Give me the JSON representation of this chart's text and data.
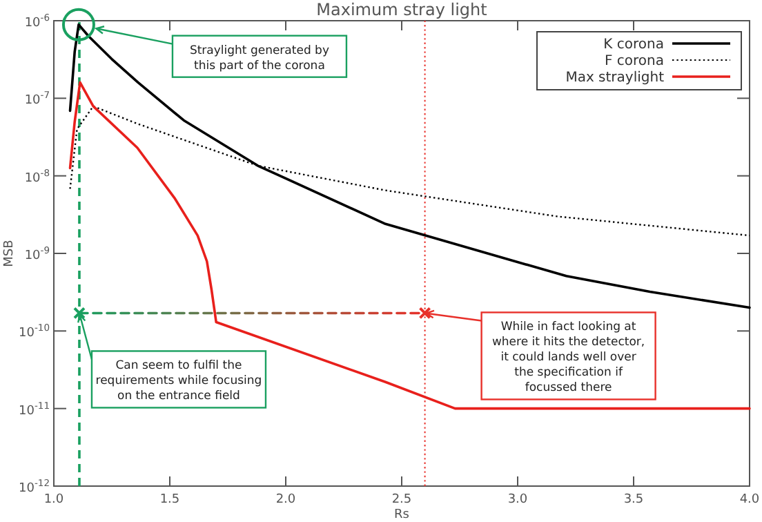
{
  "chart_data": {
    "type": "line",
    "title": "Maximum stray light",
    "xlabel": "Rs",
    "ylabel": "MSB",
    "log": "y",
    "grid": false,
    "legend": "top right",
    "marker": "none",
    "xlim": [
      1.0,
      4.0
    ],
    "xticks": [
      {
        "value": 1,
        "label": "1.0"
      },
      {
        "value": 1.5,
        "label": "1.5"
      },
      {
        "value": 2,
        "label": "2.0"
      },
      {
        "value": 2.5,
        "label": "2.5"
      },
      {
        "value": 3,
        "label": "3.0"
      },
      {
        "value": 3.5,
        "label": "3.5"
      },
      {
        "value": 4,
        "label": "4.0"
      }
    ],
    "ylim": [
      1e-12,
      1e-06
    ],
    "yticks": [
      {
        "value": 1e-12,
        "label": "10$^{-12}$"
      },
      {
        "value": 1e-11,
        "label": "10$^{-11}$"
      },
      {
        "value": 1e-10,
        "label": "10$^{-10}$"
      },
      {
        "value": 1e-09,
        "label": "10$^{-9}$"
      },
      {
        "value": 1e-08,
        "label": "10$^{-8}$"
      },
      {
        "value": 1e-07,
        "label": "10$^{-7}$"
      },
      {
        "value": 1e-06,
        "label": "10$^{-6}$"
      }
    ],
    "series": [
      {
        "name": "K corona",
        "color": "#000000",
        "line_style": "solid",
        "x": [
          1.07,
          1.09,
          1.107,
          1.15,
          1.25,
          1.363,
          1.56,
          1.88,
          2.43,
          3.21,
          3.57,
          4.0
        ],
        "values": [
          6.9e-08,
          4e-07,
          8.9e-07,
          6.3e-07,
          3.2e-07,
          1.6e-07,
          5.2e-08,
          1.35e-08,
          2.4e-09,
          5.1e-10,
          3.2e-10,
          2e-10
        ]
      },
      {
        "name": "F corona",
        "color": "#000000",
        "line_style": "dotted",
        "x": [
          1.07,
          1.1,
          1.17,
          1.36,
          1.88,
          2.43,
          3.17,
          4.0
        ],
        "values": [
          6.8e-09,
          4e-08,
          7.9e-08,
          4.7e-08,
          1.35e-08,
          6.5e-09,
          3e-09,
          1.7e-09
        ]
      },
      {
        "name": "Max straylight",
        "color": "#e8201c",
        "line_style": "solid",
        "x": [
          1.07,
          1.09,
          1.113,
          1.17,
          1.36,
          1.52,
          1.62,
          1.66,
          1.68,
          1.7,
          2.43,
          2.73,
          4.0
        ],
        "values": [
          1.26e-08,
          5e-08,
          1.6e-07,
          7.9e-08,
          2.3e-08,
          5.2e-09,
          1.7e-09,
          7.9e-10,
          3.4e-10,
          1.3e-10,
          2.2e-11,
          1e-11,
          1e-11
        ]
      },
      {
        "type": "line",
        "line_style": "dashed",
        "marker": "cross",
        "colors": [
          "#1aa060",
          "#e8302a"
        ],
        "x": [
          1.11,
          2.6
        ],
        "values": [
          1.7e-10,
          1.7e-10
        ]
      }
    ],
    "ref_lines": [
      {
        "axis": "x",
        "value": 1.11,
        "color": "#1aa060",
        "line_style": "dashed"
      },
      {
        "axis": "x",
        "value": 2.6,
        "color": "#e8302a",
        "line_style": "dotted"
      }
    ],
    "annotations": [
      "Straylight generated by this part of the corona",
      {
        "text": "Can seem to fulfil the requirements while focusing on the entrance field",
        "x": 1.11,
        "y": 1.7e-10
      },
      {
        "text": "While in fact looking at where it hits the detector, it could lands well over the specification if focussed there",
        "x": 2.6,
        "y": 1.7e-10
      }
    ]
  }
}
